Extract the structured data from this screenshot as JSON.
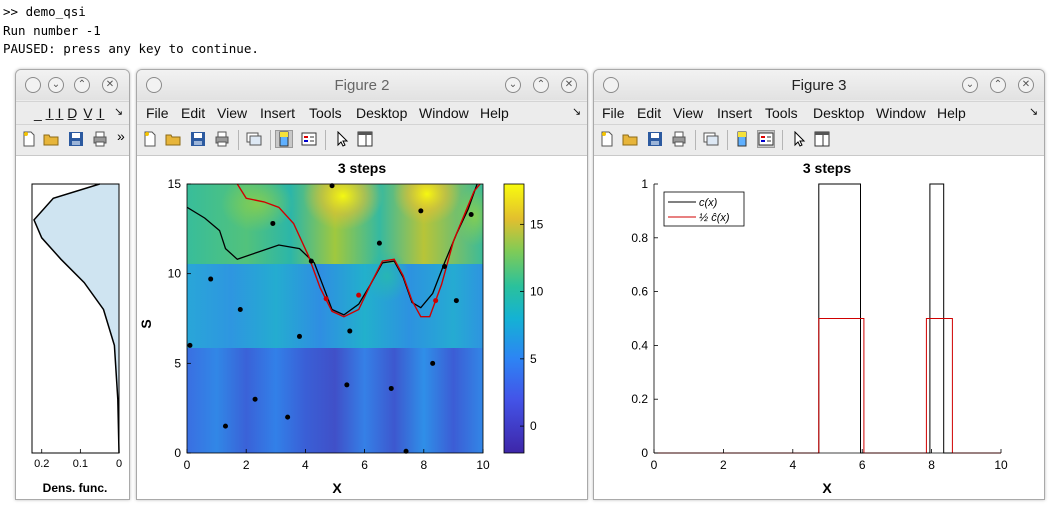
{
  "console": {
    "line1": ">> demo_qsi",
    "line2": "Run number -1",
    "line3": "PAUSED: press any key to continue."
  },
  "window1": {
    "menu_partial": "_ I̲ I̲ D̲ V̲ I̲",
    "overflow": "»",
    "dropdown": "↘",
    "xlabel": "Dens. func.",
    "xticks": [
      "0.2",
      "0.1",
      "0"
    ]
  },
  "figure2": {
    "title": "Figure 2",
    "menu": [
      "File",
      "Edit",
      "View",
      "Insert",
      "Tools",
      "Desktop",
      "Window",
      "Help"
    ],
    "dropdown": "↘",
    "plot_title": "3 steps",
    "xlabel": "X",
    "ylabel": "S",
    "xticks": [
      "0",
      "2",
      "4",
      "6",
      "8",
      "10"
    ],
    "yticks": [
      "0",
      "5",
      "10",
      "15"
    ],
    "colorbar_ticks": [
      "0",
      "5",
      "10",
      "15"
    ]
  },
  "figure3": {
    "title": "Figure 3",
    "menu": [
      "File",
      "Edit",
      "View",
      "Insert",
      "Tools",
      "Desktop",
      "Window",
      "Help"
    ],
    "dropdown": "↘",
    "plot_title": "3 steps",
    "xlabel": "X",
    "xticks": [
      "0",
      "2",
      "4",
      "6",
      "8",
      "10"
    ],
    "yticks": [
      "0",
      "0.2",
      "0.4",
      "0.6",
      "0.8",
      "1"
    ],
    "legend": [
      "c(x)",
      "½ ĉ(x)"
    ]
  },
  "colors": {
    "axes_black": "#000000",
    "series_red": "#d00000",
    "density_fill": "#cfe4f1",
    "parula_low": "#3e26a8",
    "parula_high": "#f9fb0e"
  },
  "chart_data": [
    {
      "type": "line",
      "title": "",
      "xlabel": "Dens. func.",
      "xlim": [
        0.2,
        0
      ],
      "series": [
        {
          "values": [
            [
              0.0,
              0
            ],
            [
              0.003,
              3
            ],
            [
              0.012,
              6
            ],
            [
              0.04,
              8
            ],
            [
              0.09,
              9.5
            ],
            [
              0.15,
              10.8
            ],
            [
              0.2,
              12
            ],
            [
              0.22,
              13
            ],
            [
              0.17,
              14.2
            ],
            [
              0.05,
              15
            ]
          ]
        }
      ]
    },
    {
      "type": "heatmap",
      "title": "3 steps",
      "xlabel": "X",
      "ylabel": "S",
      "xlim": [
        0,
        10
      ],
      "ylim": [
        0,
        15
      ],
      "clim": [
        -2,
        18
      ],
      "points": [
        [
          0.1,
          6
        ],
        [
          0.8,
          9.7
        ],
        [
          1.3,
          1.5
        ],
        [
          1.8,
          8
        ],
        [
          2.3,
          3
        ],
        [
          2.9,
          12.8
        ],
        [
          3.4,
          2
        ],
        [
          3.8,
          6.5
        ],
        [
          4.2,
          10.7
        ],
        [
          4.9,
          14.9
        ],
        [
          5.4,
          3.8
        ],
        [
          5.5,
          6.8
        ],
        [
          6.5,
          11.7
        ],
        [
          6.9,
          3.6
        ],
        [
          7.4,
          0.1
        ],
        [
          7.9,
          13.5
        ],
        [
          8.3,
          5
        ],
        [
          8.7,
          10.4
        ],
        [
          9.1,
          8.5
        ],
        [
          9.6,
          13.3
        ]
      ],
      "red_points": [
        [
          4.7,
          8.6
        ],
        [
          5.8,
          8.8
        ],
        [
          8.4,
          8.5
        ]
      ],
      "contour_black": [
        [
          0,
          13.7
        ],
        [
          0.6,
          13.1
        ],
        [
          1.1,
          12.4
        ],
        [
          1.3,
          11.4
        ],
        [
          1.7,
          10.8
        ],
        [
          2.4,
          11.2
        ],
        [
          3.1,
          11.6
        ],
        [
          3.8,
          11.4
        ],
        [
          4.3,
          10.6
        ],
        [
          4.6,
          9.3
        ],
        [
          4.9,
          8.0
        ],
        [
          5.3,
          7.7
        ],
        [
          5.8,
          8.3
        ],
        [
          6.2,
          9.4
        ],
        [
          6.6,
          10.6
        ],
        [
          7.0,
          10.7
        ],
        [
          7.3,
          9.8
        ],
        [
          7.6,
          8.4
        ],
        [
          7.9,
          8.1
        ],
        [
          8.3,
          8.9
        ],
        [
          8.7,
          10.6
        ],
        [
          9.1,
          12.2
        ],
        [
          9.5,
          13.6
        ],
        [
          9.8,
          15
        ]
      ],
      "contour_red": [
        [
          1.7,
          15
        ],
        [
          2.0,
          14.2
        ],
        [
          2.6,
          14.0
        ],
        [
          3.1,
          13.7
        ],
        [
          3.6,
          12.8
        ],
        [
          4.1,
          11.0
        ],
        [
          4.5,
          9.2
        ],
        [
          4.9,
          7.9
        ],
        [
          5.3,
          7.6
        ],
        [
          5.8,
          8.0
        ],
        [
          6.2,
          9.4
        ],
        [
          6.6,
          10.7
        ],
        [
          7.0,
          10.8
        ],
        [
          7.3,
          9.9
        ],
        [
          7.6,
          8.5
        ],
        [
          7.9,
          7.6
        ],
        [
          8.2,
          7.6
        ],
        [
          8.6,
          9.4
        ],
        [
          9.0,
          11.8
        ],
        [
          9.4,
          13.4
        ],
        [
          9.7,
          14.6
        ],
        [
          9.9,
          15
        ]
      ]
    },
    {
      "type": "line",
      "title": "3 steps",
      "xlabel": "X",
      "ylabel": "",
      "xlim": [
        0,
        10
      ],
      "ylim": [
        0,
        1
      ],
      "series": [
        {
          "name": "c(x)",
          "color": "#000000",
          "values": [
            [
              0,
              0
            ],
            [
              4.75,
              0
            ],
            [
              4.75,
              1
            ],
            [
              5.95,
              1
            ],
            [
              5.95,
              0
            ],
            [
              7.95,
              0
            ],
            [
              7.95,
              1
            ],
            [
              8.35,
              1
            ],
            [
              8.35,
              0
            ],
            [
              10,
              0
            ]
          ]
        },
        {
          "name": "½ ĉ(x)",
          "color": "#d00000",
          "values": [
            [
              0,
              0
            ],
            [
              4.75,
              0
            ],
            [
              4.75,
              0.5
            ],
            [
              6.05,
              0.5
            ],
            [
              6.05,
              0
            ],
            [
              7.85,
              0
            ],
            [
              7.85,
              0.5
            ],
            [
              8.6,
              0.5
            ],
            [
              8.6,
              0
            ],
            [
              10,
              0
            ]
          ]
        }
      ]
    }
  ]
}
